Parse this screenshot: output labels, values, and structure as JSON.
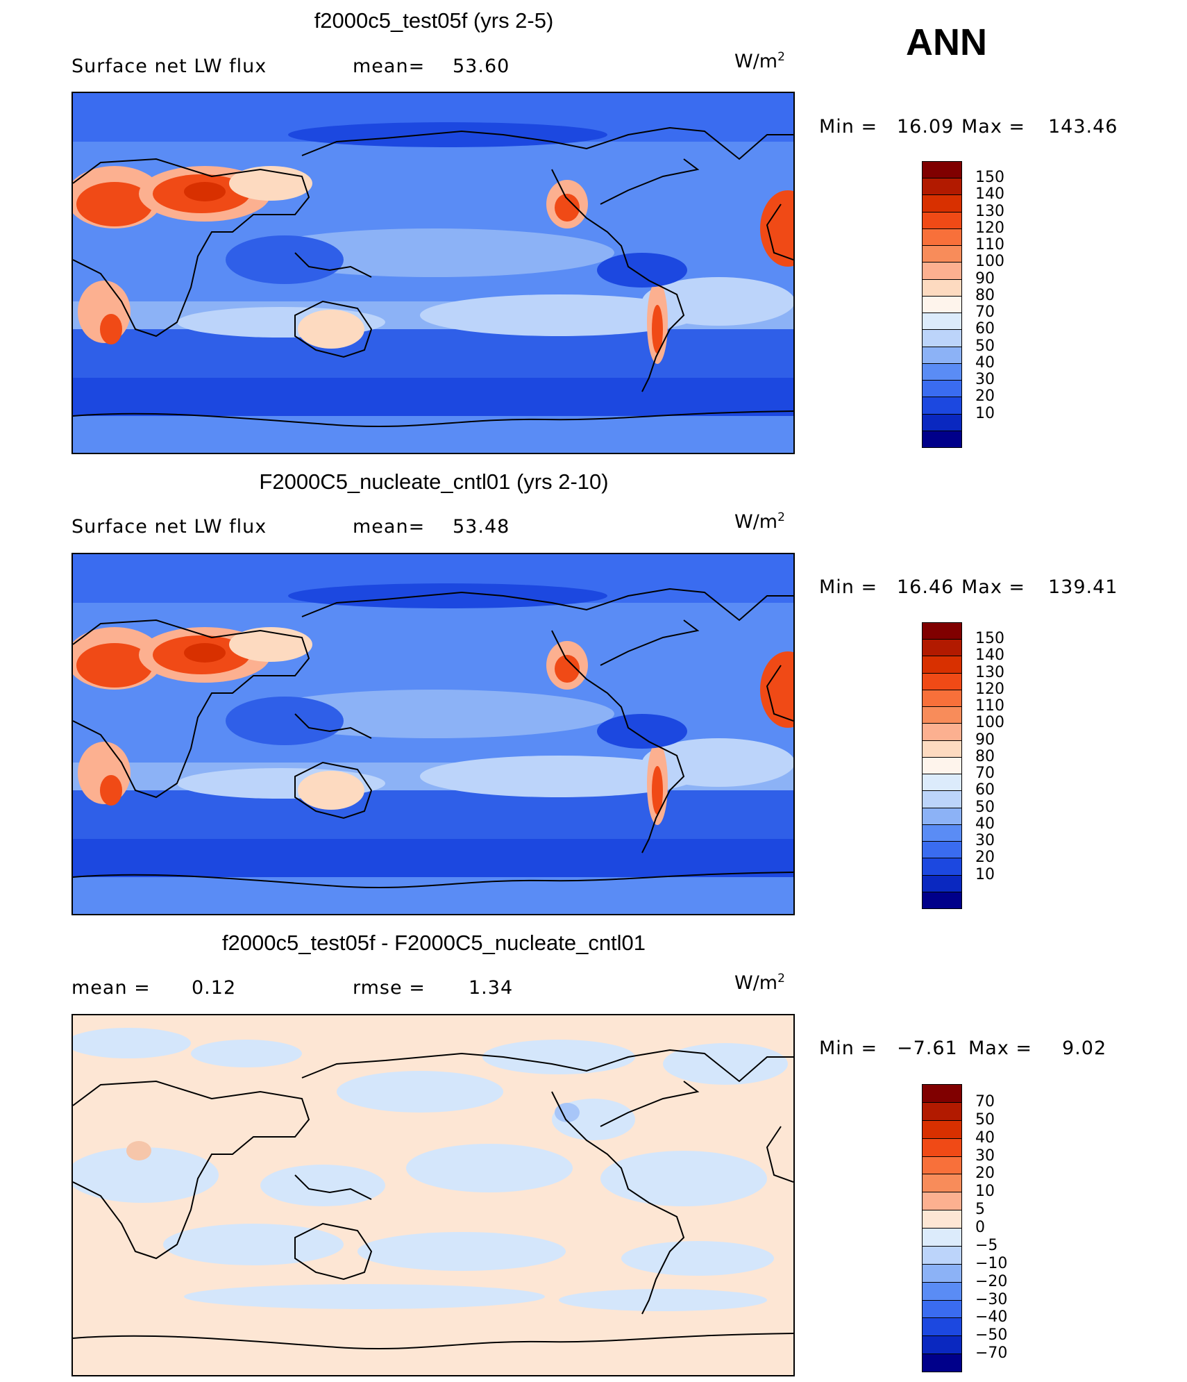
{
  "season": "ANN",
  "colors": {
    "ocean_mid": "#5a8cf5",
    "ocean_low": "#2f5fe8",
    "pale_blue": "#c6dcfb",
    "warm": "#f46e3a",
    "hot": "#d8321a",
    "diff_pos": "#fde6d4",
    "diff_neg": "#d4e6fb"
  },
  "panels": [
    {
      "title": "f2000c5_test05f (yrs 2-5)",
      "left_label": "Surface net LW flux",
      "stat_label": "mean=",
      "stat_value": "53.60",
      "units_base": "W/m",
      "units_exp": "2",
      "minmax": {
        "min_label": "Min  =",
        "min": "16.09",
        "max_label": "Max  =",
        "max": "143.46"
      },
      "colorbar": {
        "ticks": [
          "150",
          "140",
          "130",
          "120",
          "110",
          "100",
          "90",
          "80",
          "70",
          "60",
          "50",
          "40",
          "30",
          "20",
          "10"
        ],
        "colors": [
          "#800000",
          "#b21a00",
          "#d83000",
          "#f04a16",
          "#f8703a",
          "#f88c5a",
          "#fcb090",
          "#fddac0",
          "#fef4ec",
          "#dcebfb",
          "#bcd4fa",
          "#8cb2f6",
          "#5a8cf5",
          "#3a6cf0",
          "#1c48e0",
          "#0a28c0",
          "#00008a"
        ]
      }
    },
    {
      "title": "F2000C5_nucleate_cntl01 (yrs 2-10)",
      "left_label": "Surface net LW flux",
      "stat_label": "mean=",
      "stat_value": "53.48",
      "units_base": "W/m",
      "units_exp": "2",
      "minmax": {
        "min_label": "Min  =",
        "min": "16.46",
        "max_label": "Max  =",
        "max": "139.41"
      },
      "colorbar": {
        "ticks": [
          "150",
          "140",
          "130",
          "120",
          "110",
          "100",
          "90",
          "80",
          "70",
          "60",
          "50",
          "40",
          "30",
          "20",
          "10"
        ],
        "colors": [
          "#800000",
          "#b21a00",
          "#d83000",
          "#f04a16",
          "#f8703a",
          "#f88c5a",
          "#fcb090",
          "#fddac0",
          "#fef4ec",
          "#dcebfb",
          "#bcd4fa",
          "#8cb2f6",
          "#5a8cf5",
          "#3a6cf0",
          "#1c48e0",
          "#0a28c0",
          "#00008a"
        ]
      }
    },
    {
      "title": "f2000c5_test05f - F2000C5_nucleate_cntl01",
      "left_label": "mean  =",
      "left_value": "0.12",
      "stat_label": "rmse  =",
      "stat_value": "1.34",
      "units_base": "W/m",
      "units_exp": "2",
      "minmax": {
        "min_label": "Min  =",
        "min": "−7.61",
        "max_label": "Max  =",
        "max": "9.02"
      },
      "colorbar": {
        "ticks": [
          "70",
          "50",
          "40",
          "30",
          "20",
          "10",
          "5",
          "0",
          "−5",
          "−10",
          "−20",
          "−30",
          "−40",
          "−50",
          "−70"
        ],
        "colors": [
          "#800000",
          "#b21a00",
          "#d83000",
          "#f04a16",
          "#f8703a",
          "#f88c5a",
          "#fcb090",
          "#fde6d4",
          "#dcebfb",
          "#bcd4fa",
          "#8cb2f6",
          "#5a8cf5",
          "#3a6cf0",
          "#1c48e0",
          "#0a28c0",
          "#00008a"
        ]
      }
    }
  ]
}
